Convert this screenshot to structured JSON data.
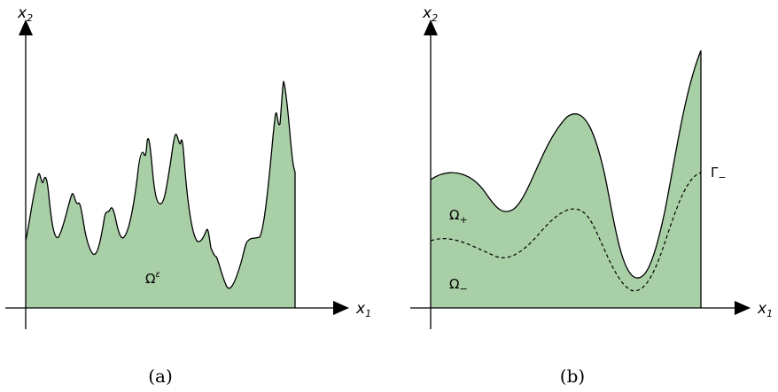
{
  "panels": [
    {
      "id": "a",
      "x_axis_label": "x",
      "x_axis_subscript": "1",
      "y_axis_label": "x",
      "y_axis_subscript": "2",
      "region_label": "Ω",
      "region_label_superscript": "ε",
      "caption": "(a)"
    },
    {
      "id": "b",
      "x_axis_label": "x",
      "x_axis_subscript": "1",
      "y_axis_label": "x",
      "y_axis_subscript": "2",
      "upper_region_label": "Ω",
      "upper_region_subscript": "+",
      "lower_region_label": "Ω",
      "lower_region_subscript": "−",
      "interface_label": "Γ",
      "interface_subscript": "−",
      "caption": "(b)"
    }
  ],
  "colors": {
    "region_fill": "#a9cfa6",
    "stroke": "#000000"
  }
}
